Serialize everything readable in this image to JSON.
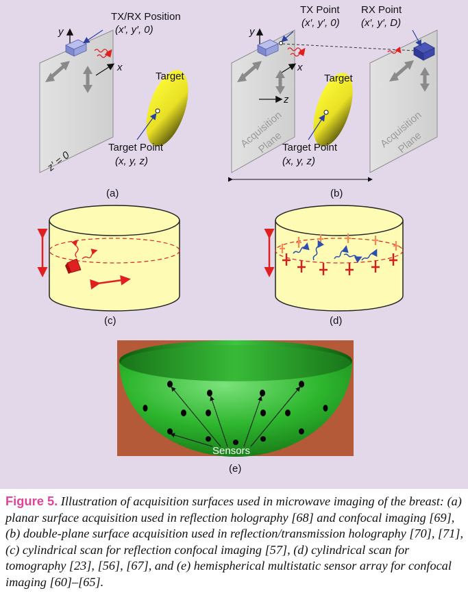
{
  "figure": {
    "panel_a": {
      "label": "(a)",
      "txrx_title": "TX/RX Position",
      "txrx_coords": "(x′, y′, 0)",
      "axis_y": "y",
      "axis_x": "x",
      "plane_label": "z′ = 0",
      "target_label": "Target",
      "target_point_title": "Target Point",
      "target_point_coords": "(x, y, z)"
    },
    "panel_b": {
      "label": "(b)",
      "tx_title": "TX Point",
      "tx_coords": "(x′, y′, 0)",
      "rx_title": "RX Point",
      "rx_coords": "(x′, y′, D)",
      "axis_y": "y",
      "axis_x": "x",
      "axis_z": "z",
      "target_label": "Target",
      "plane_left": [
        "Acquisition",
        "Plane"
      ],
      "plane_right": [
        "Acquisition",
        "Plane"
      ],
      "target_point_title": "Target Point",
      "target_point_coords": "(x, y, z)"
    },
    "panel_c": {
      "label": "(c)"
    },
    "panel_d": {
      "label": "(d)"
    },
    "panel_e": {
      "label": "(e)",
      "sensors_label": "Sensors"
    },
    "colors": {
      "panel_background": "#e3d7ea",
      "cylinder_fill": "#fdfbb4",
      "target_yellow": "#f2ee2a",
      "arrow_red": "#e02020",
      "wave_blue": "#2f4fae",
      "hemisphere_green": "#2db52d",
      "hemisphere_backdrop": "#b55a38",
      "caption_accent": "#e0449a"
    }
  },
  "caption": {
    "heading": "Figure 5.",
    "text": "Illustration of acquisition surfaces used in microwave imaging of the breast: (a) planar surface acquisition used in reflection holography [68] and confocal imaging [69], (b) double-plane surface acquisition used in reflection/transmission holography [70], [71], (c) cylindrical scan for reflection confocal imaging [57], (d) cylindrical scan for tomography [23], [56], [67], and (e) hemispherical multistatic sensor array for confocal imaging [60]–[65]."
  }
}
